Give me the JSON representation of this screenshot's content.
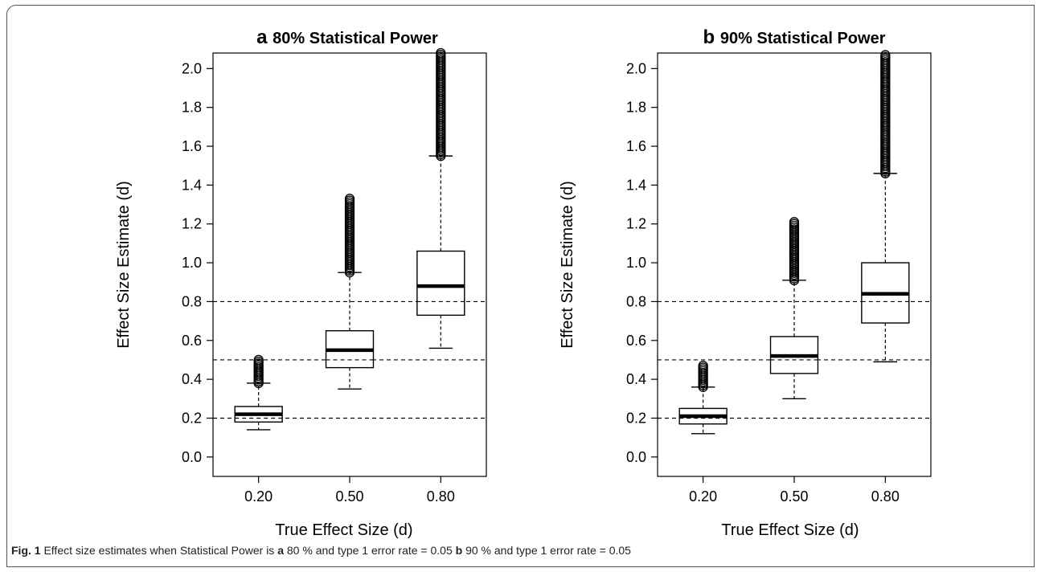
{
  "figure": {
    "caption_label": "Fig. 1",
    "caption_part1": "Effect size estimates when Statistical Power is",
    "caption_a": "a",
    "caption_part2": "80 % and type 1 error rate = 0.05",
    "caption_b": "b",
    "caption_part3": "90 % and type 1 error rate = 0.05"
  },
  "chart_data": [
    {
      "type": "box",
      "panel_letter": "a",
      "title": "80% Statistical Power",
      "xlabel": "True Effect Size (d)",
      "ylabel": "Effect Size Estimate (d)",
      "ylim": [
        -0.1,
        2.08
      ],
      "yticks": [
        "0.0",
        "0.2",
        "0.4",
        "0.6",
        "0.8",
        "1.0",
        "1.2",
        "1.4",
        "1.6",
        "1.8",
        "2.0"
      ],
      "categories": [
        "0.20",
        "0.50",
        "0.80"
      ],
      "reference_lines": [
        0.2,
        0.5,
        0.8
      ],
      "boxes": [
        {
          "whisker_low": 0.14,
          "q1": 0.18,
          "median": 0.22,
          "q3": 0.26,
          "whisker_high": 0.38,
          "outliers_range": [
            0.38,
            0.5
          ]
        },
        {
          "whisker_low": 0.35,
          "q1": 0.46,
          "median": 0.55,
          "q3": 0.65,
          "whisker_high": 0.95,
          "outliers_range": [
            0.95,
            1.33
          ]
        },
        {
          "whisker_low": 0.56,
          "q1": 0.73,
          "median": 0.88,
          "q3": 1.06,
          "whisker_high": 1.55,
          "outliers_range": [
            1.55,
            2.08
          ]
        }
      ]
    },
    {
      "type": "box",
      "panel_letter": "b",
      "title": "90% Statistical Power",
      "xlabel": "True Effect Size (d)",
      "ylabel": "Effect Size Estimate (d)",
      "ylim": [
        -0.1,
        2.08
      ],
      "yticks": [
        "0.0",
        "0.2",
        "0.4",
        "0.6",
        "0.8",
        "1.0",
        "1.2",
        "1.4",
        "1.6",
        "1.8",
        "2.0"
      ],
      "categories": [
        "0.20",
        "0.50",
        "0.80"
      ],
      "reference_lines": [
        0.2,
        0.5,
        0.8
      ],
      "boxes": [
        {
          "whisker_low": 0.12,
          "q1": 0.17,
          "median": 0.21,
          "q3": 0.25,
          "whisker_high": 0.36,
          "outliers_range": [
            0.36,
            0.47
          ]
        },
        {
          "whisker_low": 0.3,
          "q1": 0.43,
          "median": 0.52,
          "q3": 0.62,
          "whisker_high": 0.91,
          "outliers_range": [
            0.91,
            1.21
          ]
        },
        {
          "whisker_low": 0.49,
          "q1": 0.69,
          "median": 0.84,
          "q3": 1.0,
          "whisker_high": 1.46,
          "outliers_range": [
            1.46,
            2.07
          ]
        }
      ]
    }
  ]
}
